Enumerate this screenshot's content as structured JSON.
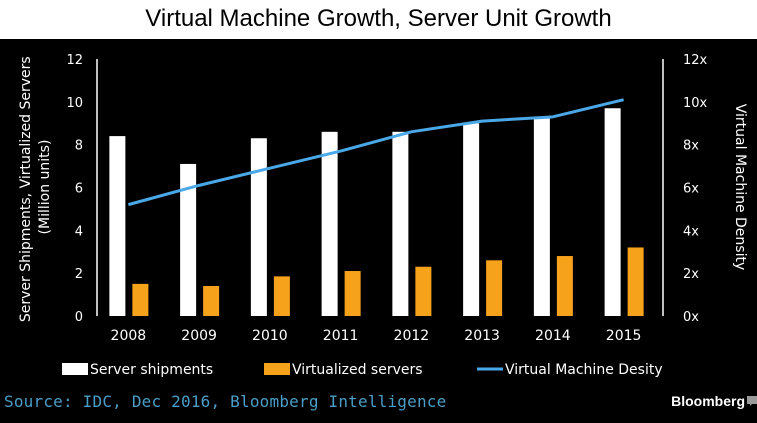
{
  "chart_data": {
    "type": "bar",
    "title": "Virtual Machine Growth, Server Unit Growth",
    "categories": [
      "2008",
      "2009",
      "2010",
      "2011",
      "2012",
      "2013",
      "2014",
      "2015"
    ],
    "series": [
      {
        "name": "Server shipments",
        "type": "bar",
        "axis": "left",
        "color": "#ffffff",
        "values": [
          8.4,
          7.1,
          8.3,
          8.6,
          8.6,
          9.0,
          9.3,
          9.7
        ]
      },
      {
        "name": "Virtualized servers",
        "type": "bar",
        "axis": "left",
        "color": "#f7a21b",
        "values": [
          1.5,
          1.4,
          1.85,
          2.1,
          2.3,
          2.6,
          2.8,
          3.2
        ]
      },
      {
        "name": "Virtual Machine Desity",
        "type": "line",
        "axis": "right",
        "color": "#4aa8e8",
        "values": [
          5.2,
          6.1,
          6.9,
          7.7,
          8.6,
          9.1,
          9.3,
          10.1
        ]
      }
    ],
    "y_left": {
      "label": "Server Shipments, Virtualized Servers\n(Million units)",
      "label_lines": [
        "Server Shipments, Virtualized Servers",
        "(Million units)"
      ],
      "ylim": [
        0,
        12
      ],
      "ticks": [
        "0",
        "2",
        "4",
        "6",
        "8",
        "10",
        "12"
      ]
    },
    "y_right": {
      "label": "Virtual Machine Density",
      "ylim": [
        0,
        12
      ],
      "ticks": [
        "0x",
        "2x",
        "4x",
        "6x",
        "8x",
        "10x",
        "12x"
      ]
    },
    "legend": {
      "position": "bottom",
      "items": [
        "Server shipments",
        "Virtualized servers",
        "Virtual Machine Desity"
      ]
    },
    "grid": false
  },
  "footer": {
    "source": "Source: IDC, Dec 2016, Bloomberg Intelligence",
    "brand": "Bloomberg"
  },
  "colors": {
    "background": "#000000",
    "server_bar": "#ffffff",
    "virtual_bar": "#f7a21b",
    "density_line": "#4aa8e8",
    "source_text": "#4a9ec6"
  }
}
